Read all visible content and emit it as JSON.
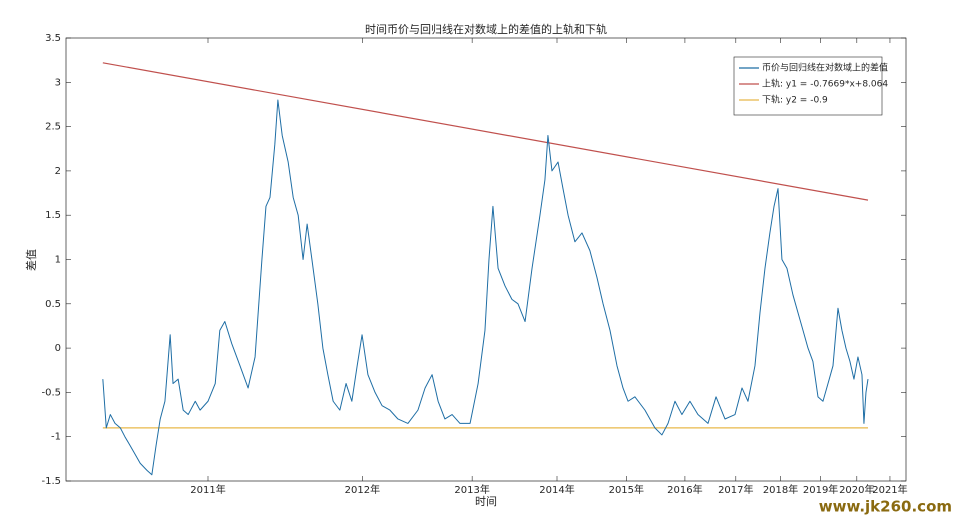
{
  "chart_data": {
    "type": "line",
    "title": "时间币价与回归线在对数域上的差值的上轨和下轨",
    "x_label": "时间",
    "y_label": "差值",
    "watermark": "www.jk260.com",
    "xscale": "log",
    "xlim": [
      501,
      4570
    ],
    "xticks": [
      {
        "value": 728,
        "label": "2011年"
      },
      {
        "value": 1093,
        "label": "2012年"
      },
      {
        "value": 1459,
        "label": "2013年"
      },
      {
        "value": 1824,
        "label": "2014年"
      },
      {
        "value": 2189,
        "label": "2015年"
      },
      {
        "value": 2554,
        "label": "2016年"
      },
      {
        "value": 2920,
        "label": "2017年"
      },
      {
        "value": 3285,
        "label": "2018年"
      },
      {
        "value": 3650,
        "label": "2019年"
      },
      {
        "value": 4015,
        "label": "2020年"
      },
      {
        "value": 4381,
        "label": "2021年"
      }
    ],
    "ylim": [
      -1.5,
      3.5
    ],
    "yticks": [
      -1.5,
      -1,
      -0.5,
      0,
      0.5,
      1,
      1.5,
      2,
      2.5,
      3,
      3.5
    ],
    "grid": false,
    "legend": "top-right",
    "series": [
      {
        "name": "币价与回归线在对数域上的差值",
        "color": "#1f6ea5",
        "x": [
          552,
          557,
          563,
          570,
          578,
          585,
          593,
          601,
          609,
          620,
          628,
          635,
          642,
          650,
          659,
          664,
          673,
          682,
          691,
          704,
          713,
          728,
          742,
          751,
          761,
          775,
          792,
          809,
          824,
          839,
          848,
          857,
          868,
          875,
          885,
          899,
          911,
          923,
          935,
          945,
          957,
          972,
          985,
          998,
          1012,
          1030,
          1047,
          1063,
          1078,
          1092,
          1109,
          1130,
          1151,
          1175,
          1200,
          1232,
          1265,
          1289,
          1313,
          1334,
          1358,
          1384,
          1413,
          1451,
          1482,
          1509,
          1525,
          1541,
          1562,
          1591,
          1620,
          1646,
          1677,
          1708,
          1744,
          1767,
          1781,
          1800,
          1829,
          1853,
          1878,
          1912,
          1948,
          1989,
          2026,
          2059,
          2097,
          2136,
          2170,
          2199,
          2239,
          2299,
          2360,
          2404,
          2443,
          2488,
          2534,
          2588,
          2643,
          2714,
          2772,
          2838,
          2914,
          2968,
          3015,
          3071,
          3112,
          3153,
          3194,
          3229,
          3263,
          3297,
          3341,
          3394,
          3439,
          3485,
          3531,
          3577,
          3625,
          3673,
          3722,
          3771,
          3821,
          3861,
          3902,
          3943,
          3985,
          4027,
          4070,
          4091,
          4113,
          4135
        ],
        "values": [
          -0.35,
          -0.9,
          -0.75,
          -0.85,
          -0.9,
          -1.0,
          -1.1,
          -1.2,
          -1.3,
          -1.38,
          -1.43,
          -1.1,
          -0.8,
          -0.6,
          0.15,
          -0.4,
          -0.35,
          -0.7,
          -0.75,
          -0.6,
          -0.7,
          -0.6,
          -0.4,
          0.2,
          0.3,
          0.05,
          -0.2,
          -0.45,
          -0.1,
          1.0,
          1.6,
          1.7,
          2.3,
          2.8,
          2.4,
          2.1,
          1.7,
          1.5,
          1.0,
          1.4,
          1.0,
          0.5,
          0.0,
          -0.3,
          -0.6,
          -0.7,
          -0.4,
          -0.6,
          -0.2,
          0.15,
          -0.3,
          -0.5,
          -0.65,
          -0.7,
          -0.8,
          -0.85,
          -0.7,
          -0.45,
          -0.3,
          -0.6,
          -0.8,
          -0.75,
          -0.85,
          -0.85,
          -0.4,
          0.2,
          1.0,
          1.6,
          0.9,
          0.7,
          0.55,
          0.5,
          0.3,
          0.9,
          1.5,
          1.9,
          2.4,
          2.0,
          2.1,
          1.8,
          1.5,
          1.2,
          1.3,
          1.1,
          0.8,
          0.5,
          0.2,
          -0.2,
          -0.45,
          -0.6,
          -0.55,
          -0.7,
          -0.9,
          -0.98,
          -0.85,
          -0.6,
          -0.75,
          -0.6,
          -0.75,
          -0.85,
          -0.55,
          -0.8,
          -0.75,
          -0.45,
          -0.6,
          -0.2,
          0.4,
          0.9,
          1.3,
          1.6,
          1.8,
          1.0,
          0.9,
          0.6,
          0.4,
          0.2,
          0.0,
          -0.15,
          -0.55,
          -0.6,
          -0.4,
          -0.2,
          0.45,
          0.2,
          0.0,
          -0.15,
          -0.35,
          -0.1,
          -0.3,
          -0.85,
          -0.5,
          -0.35
        ]
      },
      {
        "name": "上轨: y1 = -0.7669*x+8.064",
        "color": "#c0504d",
        "x": [
          552,
          4135
        ],
        "values": [
          3.22,
          1.67
        ]
      },
      {
        "name": "下轨: y2 = -0.9",
        "color": "#e8b84a",
        "x": [
          552,
          4135
        ],
        "values": [
          -0.9,
          -0.9
        ]
      }
    ]
  }
}
